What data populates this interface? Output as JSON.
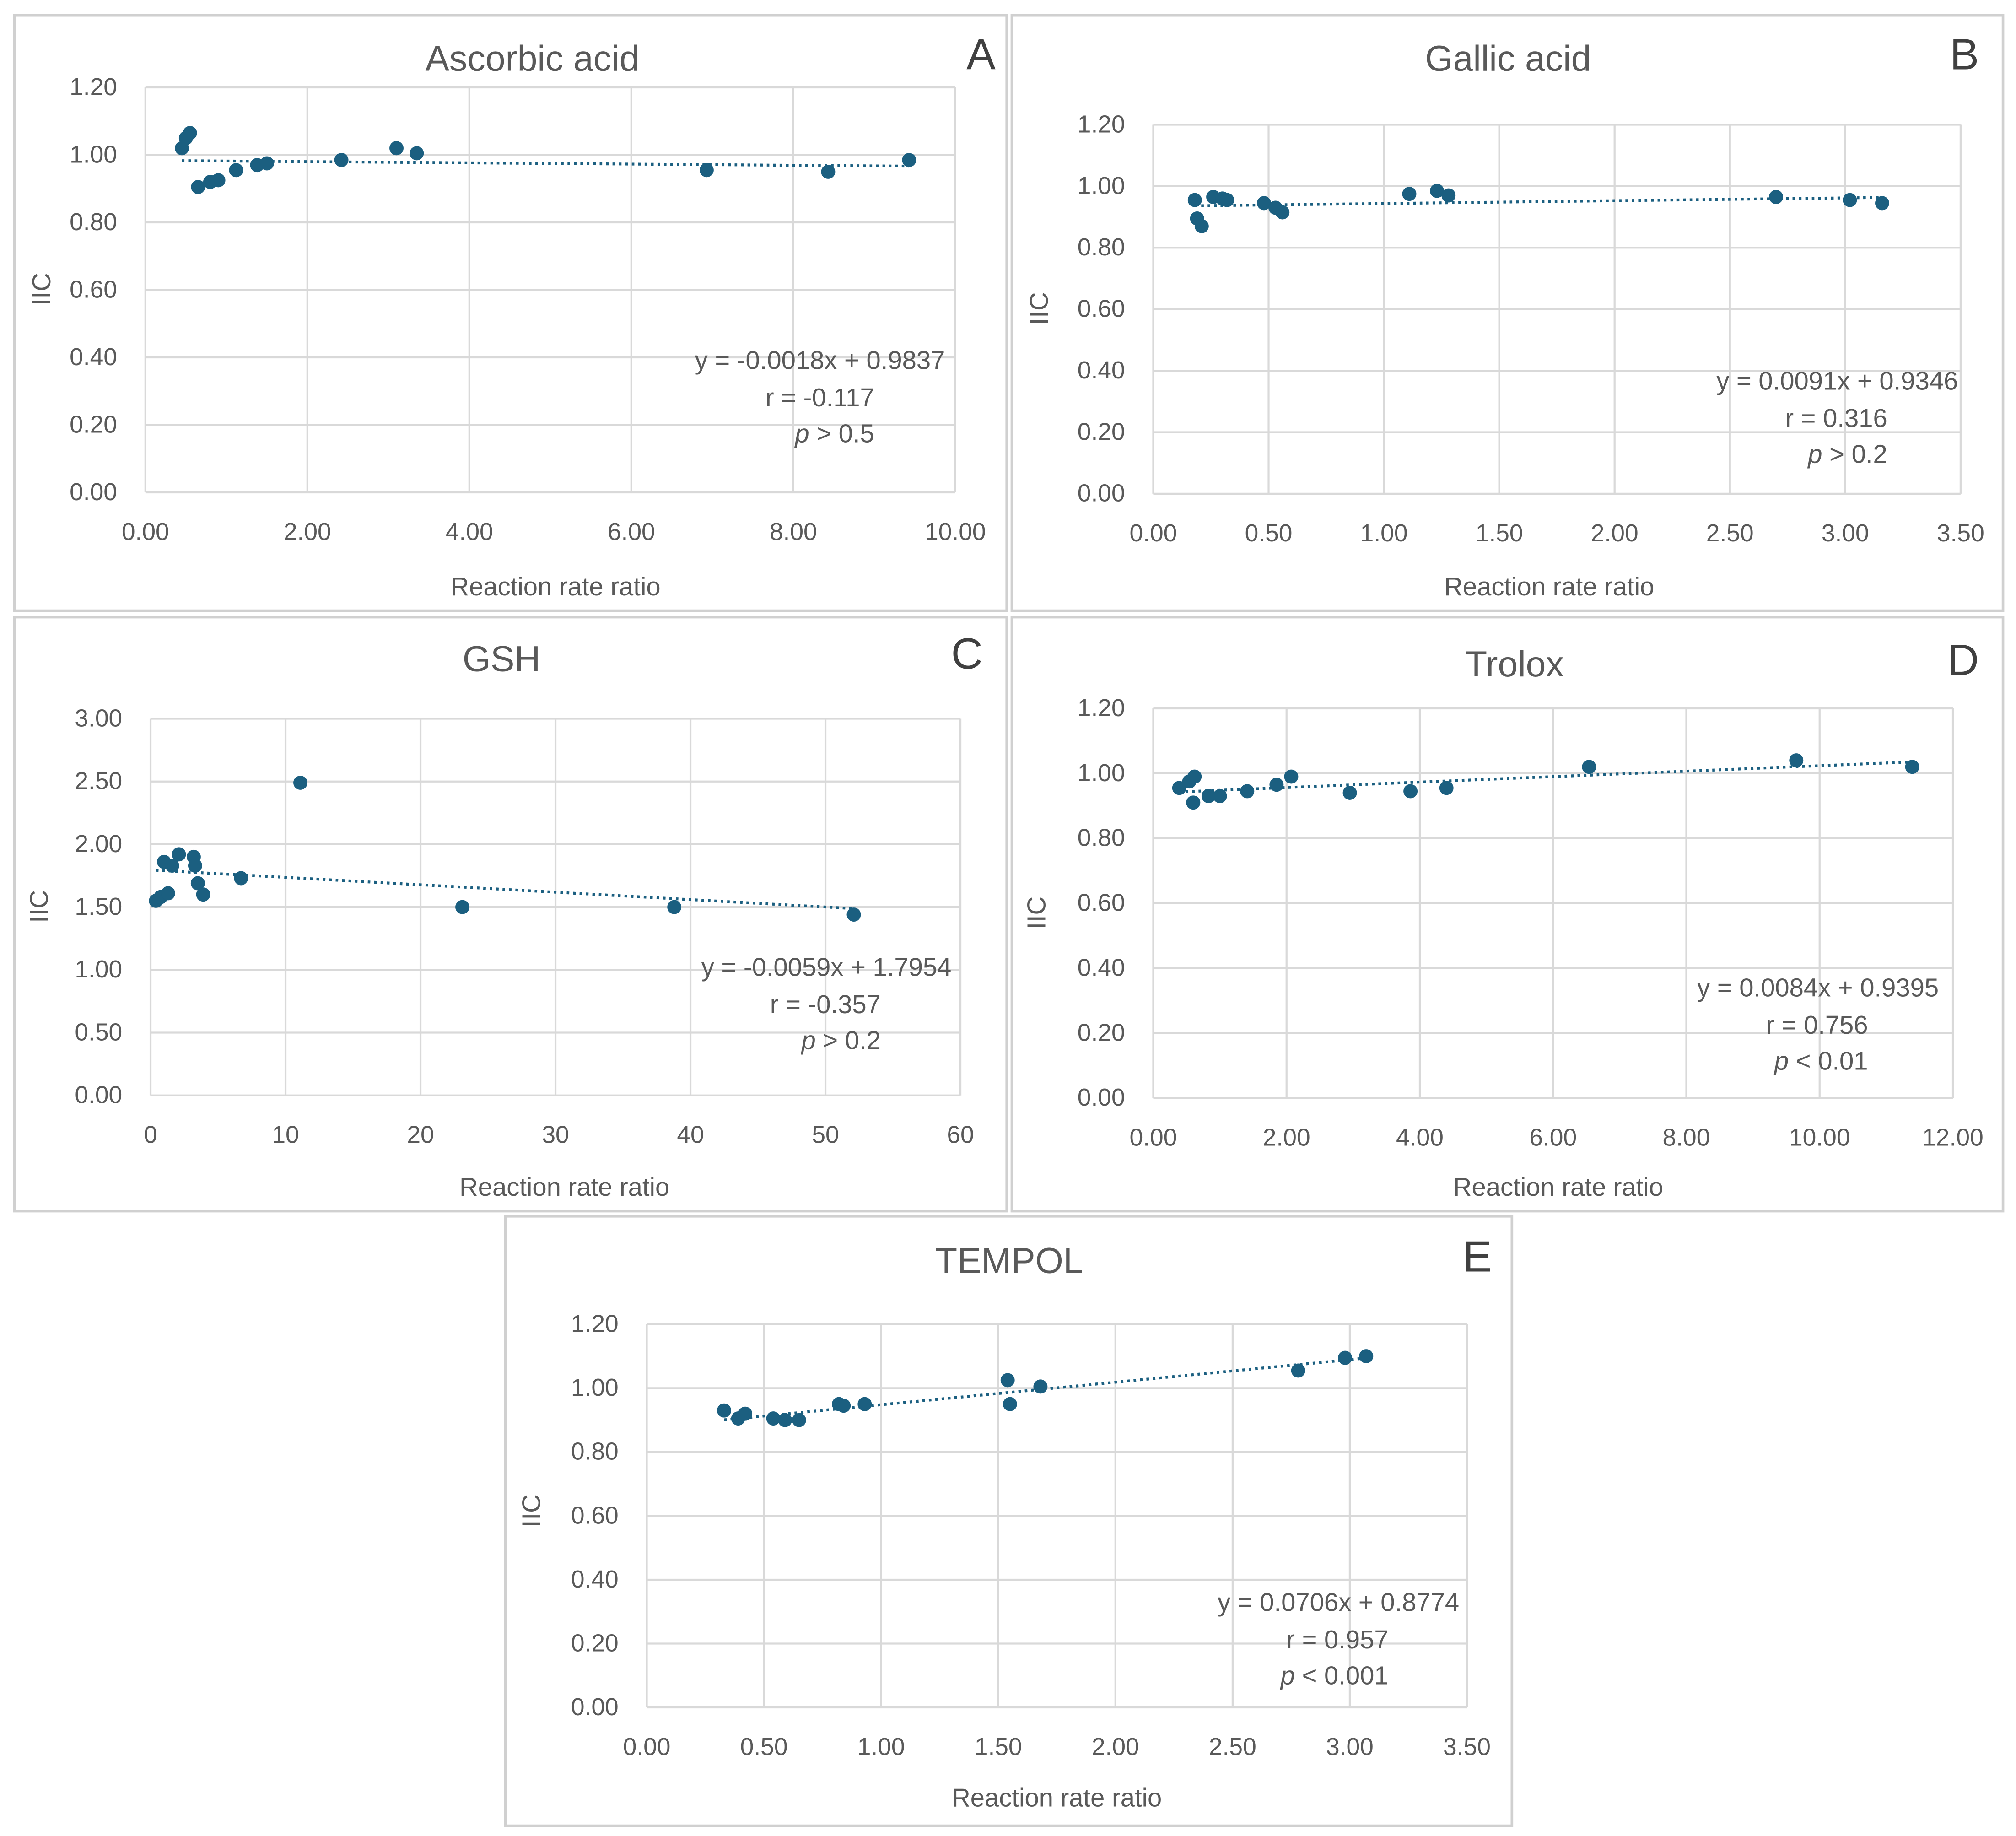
{
  "chart_data": [
    {
      "panel": "A",
      "type": "scatter",
      "title": "Ascorbic acid",
      "xlabel": "Reaction rate ratio",
      "ylabel": "IIC",
      "xlim": [
        0,
        10
      ],
      "ylim": [
        0,
        1.2
      ],
      "grid": true,
      "xticks": [
        "0.00",
        "2.00",
        "4.00",
        "6.00",
        "8.00",
        "10.00"
      ],
      "yticks": [
        "0.00",
        "0.20",
        "0.40",
        "0.60",
        "0.80",
        "1.00",
        "1.20"
      ],
      "points": [
        [
          0.45,
          1.02
        ],
        [
          0.5,
          1.05
        ],
        [
          0.55,
          1.065
        ],
        [
          0.65,
          0.905
        ],
        [
          0.8,
          0.92
        ],
        [
          0.9,
          0.925
        ],
        [
          1.12,
          0.955
        ],
        [
          1.38,
          0.97
        ],
        [
          1.5,
          0.975
        ],
        [
          2.42,
          0.985
        ],
        [
          3.1,
          1.02
        ],
        [
          3.35,
          1.005
        ],
        [
          6.93,
          0.955
        ],
        [
          8.43,
          0.95
        ],
        [
          9.43,
          0.985
        ]
      ],
      "trend": {
        "slope": -0.0018,
        "intercept": 0.9837
      },
      "equation": "y = -0.0018x + 0.9837",
      "r_text": "r = -0.117",
      "p_symbol": "p",
      "p_text": " > 0.5"
    },
    {
      "panel": "B",
      "type": "scatter",
      "title": "Gallic acid",
      "xlabel": "Reaction rate ratio",
      "ylabel": "IIC",
      "xlim": [
        0,
        3.5
      ],
      "ylim": [
        0,
        1.2
      ],
      "grid": true,
      "xticks": [
        "0.00",
        "0.50",
        "1.00",
        "1.50",
        "2.00",
        "2.50",
        "3.00",
        "3.50"
      ],
      "yticks": [
        "0.00",
        "0.20",
        "0.40",
        "0.60",
        "0.80",
        "1.00",
        "1.20"
      ],
      "points": [
        [
          0.18,
          0.955
        ],
        [
          0.19,
          0.895
        ],
        [
          0.21,
          0.87
        ],
        [
          0.26,
          0.965
        ],
        [
          0.3,
          0.96
        ],
        [
          0.32,
          0.955
        ],
        [
          0.48,
          0.945
        ],
        [
          0.53,
          0.93
        ],
        [
          0.56,
          0.915
        ],
        [
          1.11,
          0.975
        ],
        [
          1.23,
          0.985
        ],
        [
          1.28,
          0.97
        ],
        [
          2.7,
          0.965
        ],
        [
          3.02,
          0.955
        ],
        [
          3.16,
          0.945
        ]
      ],
      "trend": {
        "slope": 0.0091,
        "intercept": 0.9346
      },
      "equation": "y = 0.0091x + 0.9346",
      "r_text": "r = 0.316",
      "p_symbol": "p",
      "p_text": " > 0.2"
    },
    {
      "panel": "C",
      "type": "scatter",
      "title": "GSH",
      "xlabel": "Reaction rate ratio",
      "ylabel": "IIC",
      "xlim": [
        0,
        60
      ],
      "ylim": [
        0,
        3
      ],
      "grid": true,
      "xticks": [
        "0",
        "10",
        "20",
        "30",
        "40",
        "50",
        "60"
      ],
      "yticks": [
        "0.00",
        "0.50",
        "1.00",
        "1.50",
        "2.00",
        "2.50",
        "3.00"
      ],
      "points": [
        [
          0.4,
          1.55
        ],
        [
          0.75,
          1.58
        ],
        [
          1.0,
          1.86
        ],
        [
          1.3,
          1.61
        ],
        [
          1.6,
          1.83
        ],
        [
          2.1,
          1.92
        ],
        [
          3.2,
          1.9
        ],
        [
          3.3,
          1.83
        ],
        [
          3.5,
          1.69
        ],
        [
          3.9,
          1.6
        ],
        [
          6.7,
          1.73
        ],
        [
          11.1,
          2.49
        ],
        [
          23.1,
          1.5
        ],
        [
          38.8,
          1.5
        ],
        [
          52.1,
          1.44
        ]
      ],
      "trend": {
        "slope": -0.0059,
        "intercept": 1.7954
      },
      "equation": "y = -0.0059x + 1.7954",
      "r_text": "r = -0.357",
      "p_symbol": "p",
      "p_text": " > 0.2"
    },
    {
      "panel": "D",
      "type": "scatter",
      "title": "Trolox",
      "xlabel": "Reaction rate ratio",
      "ylabel": "IIC",
      "xlim": [
        0,
        12
      ],
      "ylim": [
        0,
        1.2
      ],
      "grid": true,
      "xticks": [
        "0.00",
        "2.00",
        "4.00",
        "6.00",
        "8.00",
        "10.00",
        "12.00"
      ],
      "yticks": [
        "0.00",
        "0.20",
        "0.40",
        "0.60",
        "0.80",
        "1.00",
        "1.20"
      ],
      "points": [
        [
          0.39,
          0.955
        ],
        [
          0.54,
          0.975
        ],
        [
          0.62,
          0.99
        ],
        [
          0.6,
          0.91
        ],
        [
          0.83,
          0.93
        ],
        [
          1.0,
          0.93
        ],
        [
          1.41,
          0.945
        ],
        [
          1.85,
          0.965
        ],
        [
          2.07,
          0.99
        ],
        [
          2.95,
          0.94
        ],
        [
          3.86,
          0.945
        ],
        [
          4.4,
          0.955
        ],
        [
          6.54,
          1.02
        ],
        [
          9.65,
          1.04
        ],
        [
          11.39,
          1.02
        ]
      ],
      "trend": {
        "slope": 0.0084,
        "intercept": 0.9395
      },
      "equation": "y = 0.0084x + 0.9395",
      "r_text": "r = 0.756",
      "p_symbol": "p",
      "p_text": " < 0.01"
    },
    {
      "panel": "E",
      "type": "scatter",
      "title": "TEMPOL",
      "xlabel": "Reaction rate ratio",
      "ylabel": "IIC",
      "xlim": [
        0,
        3.5
      ],
      "ylim": [
        0,
        1.2
      ],
      "grid": true,
      "xticks": [
        "0.00",
        "0.50",
        "1.00",
        "1.50",
        "2.00",
        "2.50",
        "3.00",
        "3.50"
      ],
      "yticks": [
        "0.00",
        "0.20",
        "0.40",
        "0.60",
        "0.80",
        "1.00",
        "1.20"
      ],
      "points": [
        [
          0.33,
          0.93
        ],
        [
          0.39,
          0.905
        ],
        [
          0.42,
          0.92
        ],
        [
          0.54,
          0.905
        ],
        [
          0.59,
          0.9
        ],
        [
          0.65,
          0.9
        ],
        [
          0.82,
          0.95
        ],
        [
          0.84,
          0.945
        ],
        [
          0.93,
          0.95
        ],
        [
          1.54,
          1.025
        ],
        [
          1.55,
          0.95
        ],
        [
          1.68,
          1.005
        ],
        [
          2.78,
          1.055
        ],
        [
          2.98,
          1.095
        ],
        [
          3.07,
          1.1
        ]
      ],
      "trend": {
        "slope": 0.0706,
        "intercept": 0.8774
      },
      "equation": "y = 0.0706x + 0.8774",
      "r_text": "r = 0.957",
      "p_symbol": "p",
      "p_text": " < 0.001"
    }
  ],
  "colors": {
    "marker": "#1b5f80",
    "grid": "#d9d9d9",
    "text": "#595959",
    "frame": "#d0d0d0"
  }
}
